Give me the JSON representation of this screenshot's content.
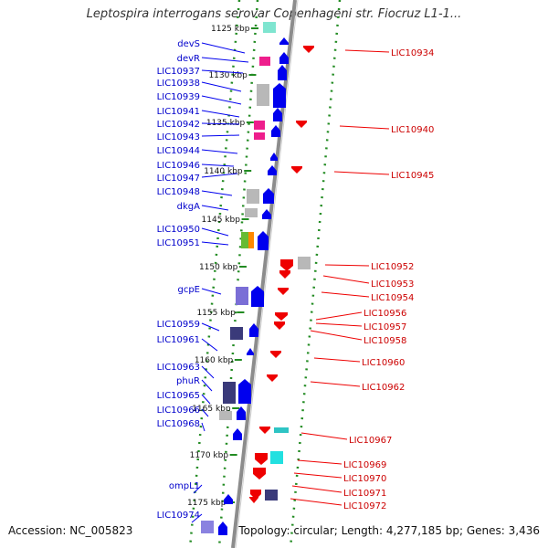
{
  "title": "Leptospira interrogans serovar Copenhageni str. Fiocruz L1-1...",
  "accession": "Accession: NC_005823",
  "topology": "Topology: circular; Length: 4,277,185 bp; Genes: 3,436",
  "colors": {
    "forward": "#0000ee",
    "forward_label": "#0000cc",
    "reverse": "#ee0000",
    "reverse_label": "#cc0000",
    "tick": "#228b22",
    "backbone": "#8c8c8c"
  },
  "scale_labels": [
    {
      "text": "1125 kbp",
      "kb": 1125
    },
    {
      "text": "1130 kbp",
      "kb": 1130
    },
    {
      "text": "1135 kbp",
      "kb": 1135
    },
    {
      "text": "1140 kbp",
      "kb": 1140
    },
    {
      "text": "1145 kbp",
      "kb": 1145
    },
    {
      "text": "1150 kbp",
      "kb": 1150
    },
    {
      "text": "1155 kbp",
      "kb": 1155
    },
    {
      "text": "1160 kbp",
      "kb": 1160
    },
    {
      "text": "1165 kbp",
      "kb": 1165
    },
    {
      "text": "1170 kbp",
      "kb": 1170
    },
    {
      "text": "1175 kbp",
      "kb": 1175
    }
  ],
  "forward_labels": [
    "devS",
    "devR",
    "LIC10937",
    "LIC10938",
    "LIC10939",
    "LIC10941",
    "LIC10942",
    "LIC10943",
    "LIC10944",
    "LIC10946",
    "LIC10947",
    "LIC10948",
    "dkgA",
    "LIC10950",
    "LIC10951",
    "gcpE",
    "LIC10959",
    "LIC10961",
    "LIC10963",
    "phuR",
    "LIC10965",
    "LIC10966",
    "LIC10968",
    "ompL1",
    "LIC10974"
  ],
  "reverse_labels": [
    "LIC10934",
    "LIC10940",
    "LIC10945",
    "LIC10952",
    "LIC10953",
    "LIC10954",
    "LIC10956",
    "LIC10957",
    "LIC10958",
    "LIC10960",
    "LIC10962",
    "LIC10967",
    "LIC10969",
    "LIC10970",
    "LIC10971",
    "LIC10972"
  ]
}
